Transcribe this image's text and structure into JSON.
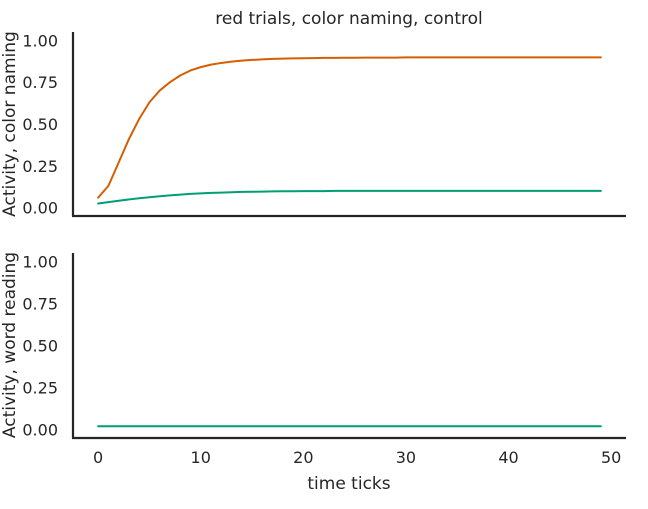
{
  "chart_data": {
    "type": "line",
    "title": "red trials, color naming, control",
    "xlabel": "time ticks",
    "x": [
      0,
      1,
      2,
      3,
      4,
      5,
      6,
      7,
      8,
      9,
      10,
      11,
      12,
      13,
      14,
      15,
      16,
      17,
      18,
      19,
      20,
      21,
      22,
      23,
      24,
      25,
      26,
      27,
      28,
      29,
      30,
      31,
      32,
      33,
      34,
      35,
      36,
      37,
      38,
      39,
      40,
      41,
      42,
      43,
      44,
      45,
      46,
      47,
      48,
      49
    ],
    "xlim": [
      -2.45,
      51.45
    ],
    "xticks": [
      0,
      10,
      20,
      30,
      40,
      50
    ],
    "colors": {
      "orange": "#d55e00",
      "green": "#009e73",
      "axis": "#262626"
    },
    "grid": false,
    "legend": "none",
    "panels": [
      {
        "ylabel": "Activity, color naming",
        "ylim": [
          -0.05,
          1.05
        ],
        "yticks": [
          0.0,
          0.25,
          0.5,
          0.75,
          1.0
        ],
        "ytick_labels": [
          "0.00",
          "0.25",
          "0.50",
          "0.75",
          "1.00"
        ],
        "series": [
          {
            "color": "#d55e00",
            "values": [
              0.06,
              0.13,
              0.27,
              0.41,
              0.53,
              0.63,
              0.7,
              0.75,
              0.79,
              0.82,
              0.84,
              0.855,
              0.865,
              0.873,
              0.879,
              0.883,
              0.886,
              0.889,
              0.891,
              0.892,
              0.893,
              0.894,
              0.895,
              0.895,
              0.896,
              0.896,
              0.897,
              0.897,
              0.897,
              0.897,
              0.898,
              0.898,
              0.898,
              0.898,
              0.898,
              0.898,
              0.898,
              0.898,
              0.898,
              0.898,
              0.898,
              0.898,
              0.898,
              0.898,
              0.898,
              0.898,
              0.898,
              0.898,
              0.898,
              0.898
            ]
          },
          {
            "color": "#009e73",
            "values": [
              0.025,
              0.033,
              0.041,
              0.049,
              0.056,
              0.062,
              0.068,
              0.073,
              0.078,
              0.082,
              0.085,
              0.088,
              0.09,
              0.092,
              0.094,
              0.095,
              0.096,
              0.097,
              0.098,
              0.098,
              0.099,
              0.099,
              0.099,
              0.1,
              0.1,
              0.1,
              0.1,
              0.1,
              0.1,
              0.1,
              0.1,
              0.1,
              0.1,
              0.1,
              0.1,
              0.1,
              0.1,
              0.1,
              0.1,
              0.1,
              0.1,
              0.1,
              0.1,
              0.1,
              0.1,
              0.1,
              0.1,
              0.1,
              0.1,
              0.1
            ]
          }
        ]
      },
      {
        "ylabel": "Activity, word reading",
        "ylim": [
          -0.05,
          1.05
        ],
        "yticks": [
          0.0,
          0.25,
          0.5,
          0.75,
          1.0
        ],
        "ytick_labels": [
          "0.00",
          "0.25",
          "0.50",
          "0.75",
          "1.00"
        ],
        "series": [
          {
            "color": "#009e73",
            "values": [
              0.02,
              0.02,
              0.02,
              0.02,
              0.02,
              0.02,
              0.02,
              0.02,
              0.02,
              0.02,
              0.02,
              0.02,
              0.02,
              0.02,
              0.02,
              0.02,
              0.02,
              0.02,
              0.02,
              0.02,
              0.02,
              0.02,
              0.02,
              0.02,
              0.02,
              0.02,
              0.02,
              0.02,
              0.02,
              0.02,
              0.02,
              0.02,
              0.02,
              0.02,
              0.02,
              0.02,
              0.02,
              0.02,
              0.02,
              0.02,
              0.02,
              0.02,
              0.02,
              0.02,
              0.02,
              0.02,
              0.02,
              0.02,
              0.02,
              0.02
            ]
          }
        ]
      }
    ]
  }
}
